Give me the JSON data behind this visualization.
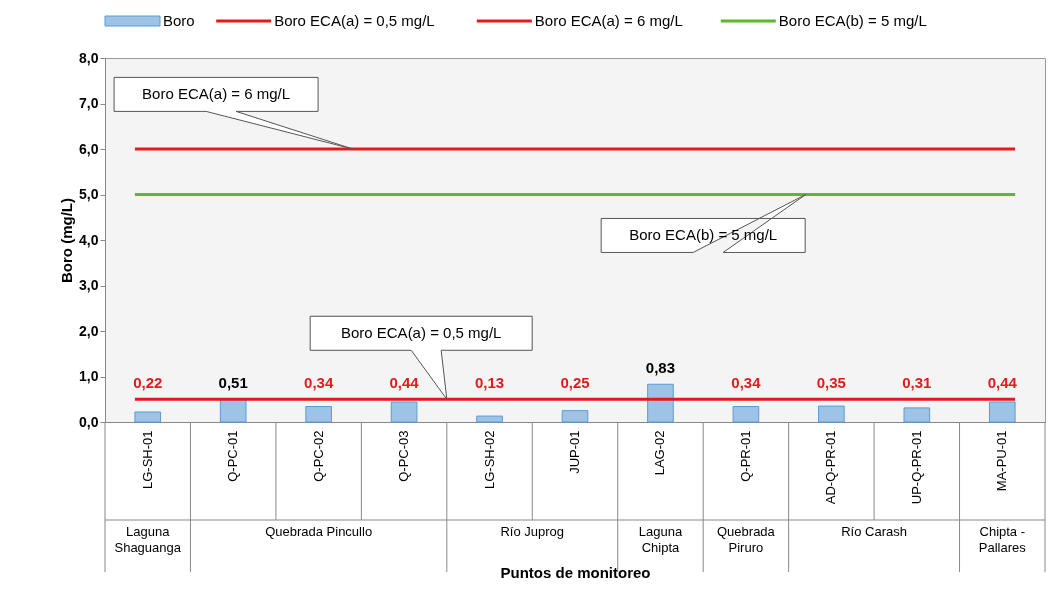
{
  "chart_data": {
    "type": "bar",
    "xlabel": "Puntos de monitoreo",
    "ylabel": "Boro (mg/L)",
    "categories": [
      "LG-SH-01",
      "Q-PC-01",
      "Q-PC-02",
      "Q-PC-03",
      "LG-SH-02",
      "JUP-01",
      "LAG-02",
      "Q-PR-01",
      "AD-Q-PR-01",
      "UP-Q-PR-01",
      "MA-PU-01"
    ],
    "series": [
      {
        "name": "Boro",
        "color": "#9dc3e6",
        "values": [
          0.22,
          0.51,
          0.34,
          0.44,
          0.13,
          0.25,
          0.83,
          0.34,
          0.35,
          0.31,
          0.44
        ],
        "value_labels": [
          "0,22",
          "0,51",
          "0,34",
          "0,44",
          "0,13",
          "0,25",
          "0,83",
          "0,34",
          "0,35",
          "0,31",
          "0,44"
        ]
      }
    ],
    "ylim": [
      0,
      8
    ],
    "yticks": [
      {
        "value": 0,
        "label": "0,0"
      },
      {
        "value": 1,
        "label": "1,0"
      },
      {
        "value": 2,
        "label": "2,0"
      },
      {
        "value": 3,
        "label": "3,0"
      },
      {
        "value": 4,
        "label": "4,0"
      },
      {
        "value": 5,
        "label": "5,0"
      },
      {
        "value": 6,
        "label": "6,0"
      },
      {
        "value": 7,
        "label": "7,0"
      },
      {
        "value": 8,
        "label": "8,0"
      }
    ],
    "ref_lines": [
      {
        "axis": "y",
        "value": 0.5,
        "label": "Boro ECA(a) = 0,5 mg/L",
        "color": "#e31a1c"
      },
      {
        "axis": "y",
        "value": 6,
        "label": "Boro ECA(a) = 6 mg/L",
        "color": "#e31a1c"
      },
      {
        "axis": "y",
        "value": 5,
        "label": "Boro ECA(b) = 5 mg/L",
        "color": "#5cb82e"
      }
    ],
    "annotations": [
      "Laguna Shaguanga",
      "Quebrada Pincullo",
      "Río Juprog",
      "Laguna Chipta",
      "Quebrada Piruro",
      "Río Carash",
      "Chipta - Pallares"
    ],
    "grid": false,
    "legend": "top"
  }
}
